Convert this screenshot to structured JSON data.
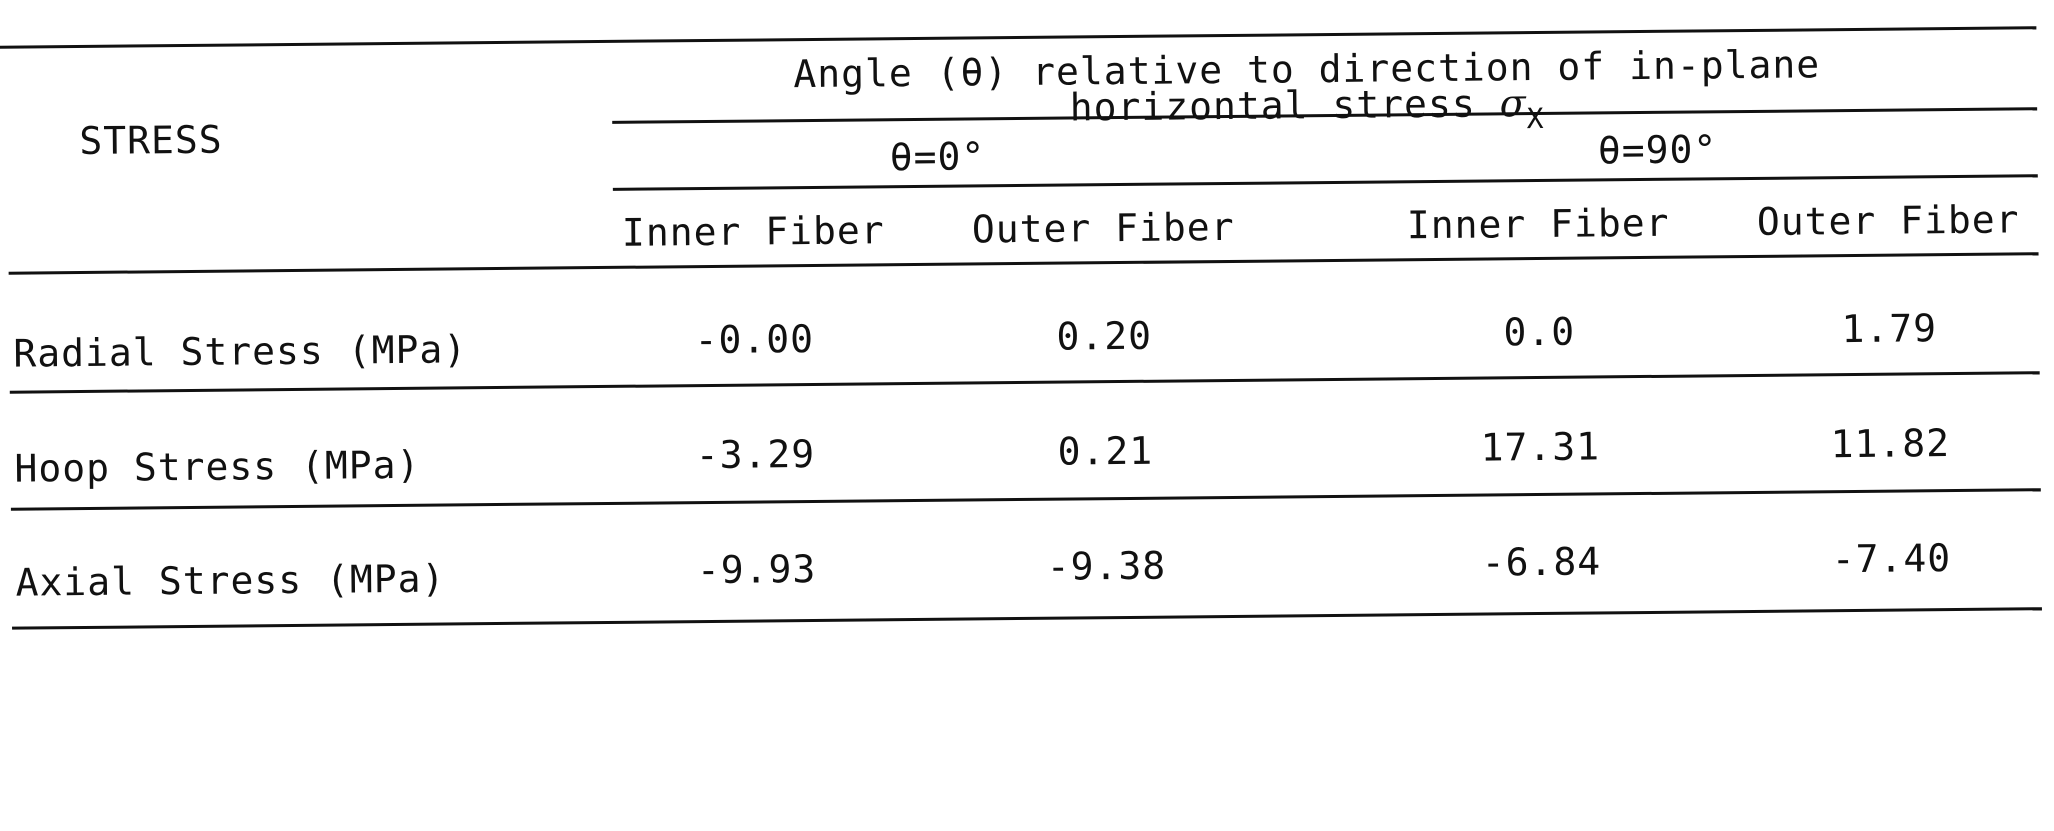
{
  "table": {
    "row_header_label": "STRESS",
    "group_header": {
      "line1": "Angle (θ) relative to direction of in-plane",
      "line2_prefix": "horizontal stress ",
      "sigma_symbol": "σ",
      "sigma_subscript": "X"
    },
    "angle_headers": [
      "θ=0°",
      "θ=90°"
    ],
    "column_headers": [
      "Inner Fiber",
      "Outer Fiber",
      "Inner Fiber",
      "Outer Fiber"
    ],
    "rows": [
      {
        "label": "Radial Stress (MPa)",
        "values": [
          "-0.00",
          "0.20",
          "0.0",
          "1.79"
        ]
      },
      {
        "label": "Hoop Stress (MPa)",
        "values": [
          "-3.29",
          "0.21",
          "17.31",
          "11.82"
        ]
      },
      {
        "label": "Axial Stress (MPa)",
        "values": [
          "-9.93",
          "-9.38",
          "-6.84",
          "-7.40"
        ]
      }
    ]
  }
}
